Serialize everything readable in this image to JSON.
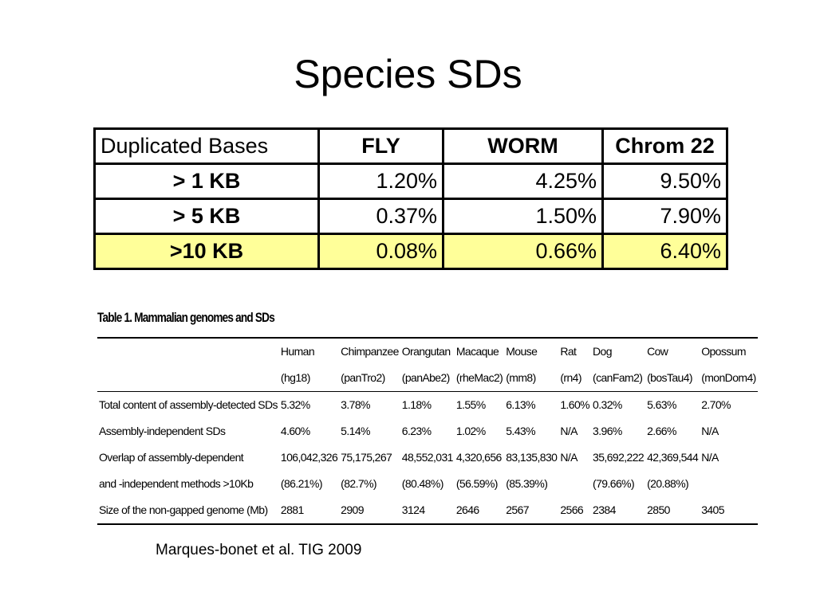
{
  "title": "Species SDs",
  "table1": {
    "header": [
      "Duplicated Bases",
      "FLY",
      "WORM",
      "Chrom 22"
    ],
    "rows": [
      [
        "> 1 KB",
        "1.20%",
        "4.25%",
        "9.50%"
      ],
      [
        "> 5 KB",
        "0.37%",
        "1.50%",
        "7.90%"
      ],
      [
        ">10 KB",
        "0.08%",
        "0.66%",
        "6.40%"
      ]
    ]
  },
  "table2": {
    "caption": "Table 1. Mammalian genomes and SDs",
    "columns": [
      [
        "Human",
        "(hg18)"
      ],
      [
        "Chimpanzee",
        "(panTro2)"
      ],
      [
        "Orangutan",
        "(panAbe2)"
      ],
      [
        "Macaque",
        "(rheMac2)"
      ],
      [
        "Mouse",
        "(mm8)"
      ],
      [
        "Rat",
        "(rn4)"
      ],
      [
        "Dog",
        "(canFam2)"
      ],
      [
        "Cow",
        "(bosTau4)"
      ],
      [
        "Opossum",
        "(monDom4)"
      ]
    ],
    "rows": [
      {
        "label": [
          "Total content of assembly-detected SDs"
        ],
        "cells": [
          [
            "5.32%"
          ],
          [
            "3.78%"
          ],
          [
            "1.18%"
          ],
          [
            "1.55%"
          ],
          [
            "6.13%"
          ],
          [
            "1.60%"
          ],
          [
            "0.32%"
          ],
          [
            "5.63%"
          ],
          [
            "2.70%"
          ]
        ]
      },
      {
        "label": [
          "Assembly-independent SDs"
        ],
        "cells": [
          [
            "4.60%"
          ],
          [
            "5.14%"
          ],
          [
            "6.23%"
          ],
          [
            "1.02%"
          ],
          [
            "5.43%"
          ],
          [
            "N/A"
          ],
          [
            "3.96%"
          ],
          [
            "2.66%"
          ],
          [
            "N/A"
          ]
        ]
      },
      {
        "label": [
          "Overlap of assembly-dependent",
          "and -independent methods >10Kb"
        ],
        "cells": [
          [
            "106,042,326",
            "(86.21%)"
          ],
          [
            "75,175,267",
            "(82.7%)"
          ],
          [
            "48,552,031",
            "(80.48%)"
          ],
          [
            "4,320,656",
            "(56.59%)"
          ],
          [
            "83,135,830",
            "(85.39%)"
          ],
          [
            "N/A"
          ],
          [
            "35,692,222",
            "(79.66%)"
          ],
          [
            "42,369,544",
            "(20.88%)"
          ],
          [
            "N/A"
          ]
        ]
      },
      {
        "label": [
          "Size of the non-gapped genome (Mb)"
        ],
        "cells": [
          [
            "2881"
          ],
          [
            "2909"
          ],
          [
            "3124"
          ],
          [
            "2646"
          ],
          [
            "2567"
          ],
          [
            "2566"
          ],
          [
            "2384"
          ],
          [
            "2850"
          ],
          [
            "3405"
          ]
        ]
      }
    ]
  },
  "citation": "Marques-bonet et al. TIG 2009"
}
